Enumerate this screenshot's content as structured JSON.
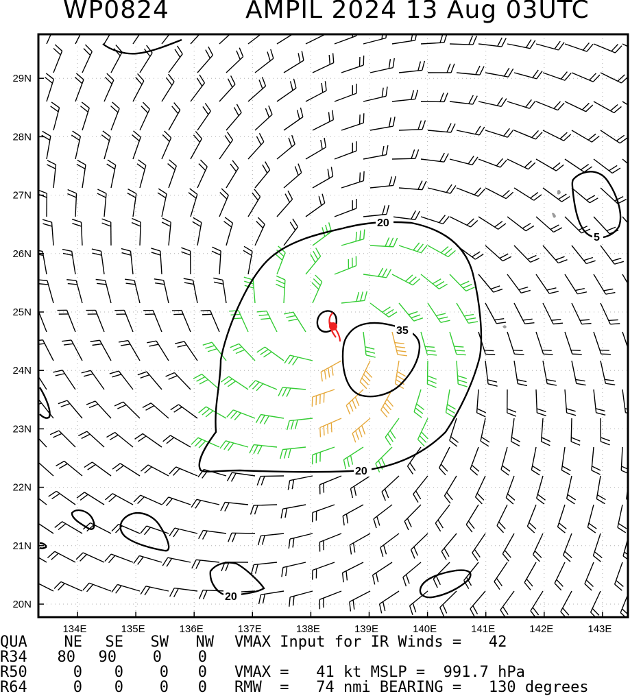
{
  "header": {
    "storm_id": "WP0824",
    "storm_info": "AMPIL 2024 13 Aug 03UTC"
  },
  "map": {
    "lon_labels": [
      "134E",
      "135E",
      "136E",
      "137E",
      "138E",
      "139E",
      "140E",
      "141E",
      "142E",
      "143E"
    ],
    "lat_labels": [
      "29N",
      "28N",
      "27N",
      "26N",
      "25N",
      "24N",
      "23N",
      "22N",
      "21N",
      "20N"
    ],
    "contour_labels": [
      "20",
      "35",
      "20",
      "20",
      "5"
    ],
    "storm_center": {
      "lon": 138.43,
      "lat": 24.77
    },
    "colors": {
      "black_barbs": "#000000",
      "green_barbs": "#33cc33",
      "orange_barbs": "#e6a83a",
      "center_marker": "#ee2222",
      "gridlines": "#b0b0b0",
      "land": "#9a9a9a"
    }
  },
  "stats": {
    "headers": [
      "QUA",
      "NE",
      "SE",
      "SW",
      "NW"
    ],
    "rows": [
      {
        "label": "R34",
        "values": [
          "80",
          "90",
          "0",
          "0"
        ]
      },
      {
        "label": "R50",
        "values": [
          "0",
          "0",
          "0",
          "0"
        ]
      },
      {
        "label": "R64",
        "values": [
          "0",
          "0",
          "0",
          "0"
        ]
      }
    ],
    "vmax_input": "VMAX Input for IR Winds =   42",
    "vmax_line": "VMAX =   41 kt MSLP =  991.7 hPa",
    "rmw_line": "RMW  =   74 nmi BEARING =   130 degrees"
  }
}
